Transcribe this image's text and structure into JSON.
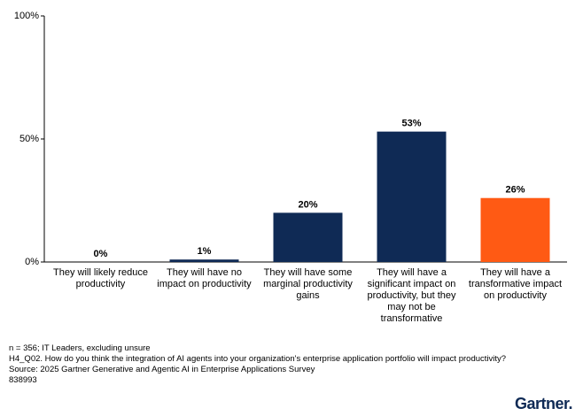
{
  "chart_data": {
    "type": "bar",
    "categories": [
      "They will likely reduce productivity",
      "They will have no impact on productivity",
      "They will have some marginal productivity gains",
      "They will have a significant impact on productivity, but they may not be transformative",
      "They will have a transformative impact on productivity"
    ],
    "values": [
      0,
      1,
      20,
      53,
      26
    ],
    "value_labels": [
      "0%",
      "1%",
      "20%",
      "53%",
      "26%"
    ],
    "colors": [
      "#0f2a55",
      "#0f2a55",
      "#0f2a55",
      "#0f2a55",
      "#ff5a14"
    ],
    "ylim": [
      0,
      100
    ],
    "yticks": [
      {
        "value": 0,
        "label": "0%"
      },
      {
        "value": 50,
        "label": "50%"
      },
      {
        "value": 100,
        "label": "100%"
      }
    ],
    "grid": false,
    "notes": [
      "n = 356; IT Leaders, excluding unsure",
      "H4_Q02. How do you think the integration of AI agents into your organization's enterprise application portfolio will impact productivity?",
      "Source: 2025 Gartner Generative and Agentic AI in Enterprise Applications Survey",
      "838993"
    ],
    "brand": "Gartner."
  }
}
